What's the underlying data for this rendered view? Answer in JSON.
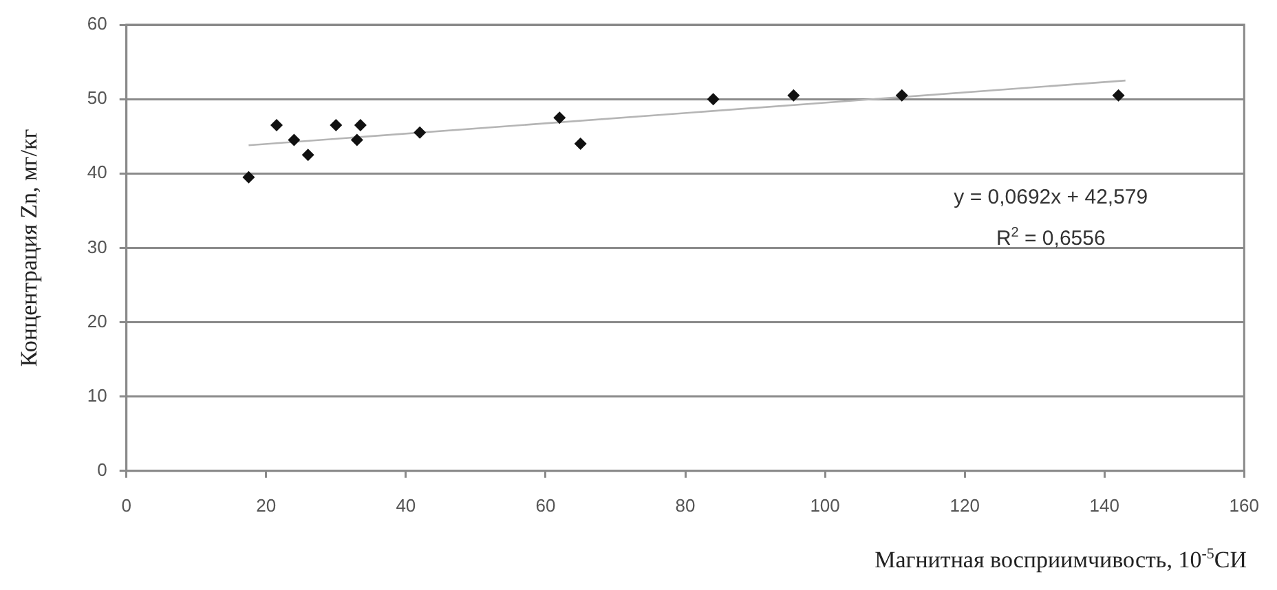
{
  "chart_data": {
    "type": "scatter",
    "xlabel": "Магнитная восприимчивость, 10$^{-5}$СИ",
    "ylabel": "Концентрация Zn, мг/кг",
    "xlim": [
      0,
      160
    ],
    "xticks": [
      0,
      20,
      40,
      60,
      80,
      100,
      120,
      140,
      160
    ],
    "ylim": [
      0,
      60
    ],
    "yticks": [
      0,
      10,
      20,
      30,
      40,
      50,
      60
    ],
    "grid": "y",
    "marker": "diamond",
    "series": [
      {
        "color": "#111111",
        "x": [
          17.5,
          21.5,
          24,
          26,
          30,
          33,
          33.5,
          42,
          62,
          65,
          84,
          95.5,
          111,
          142
        ],
        "values": [
          39.5,
          46.5,
          44.5,
          42.5,
          46.5,
          44.5,
          46.5,
          45.5,
          47.5,
          44,
          50,
          50.5,
          50.5,
          50.5
        ]
      },
      {
        "type": "line",
        "color": "#b5b5b5",
        "marker": "none",
        "x": [
          17.5,
          143
        ],
        "values": [
          43.8,
          52.5
        ]
      }
    ],
    "annotations": [
      "y = 0,0692x + 42,579",
      "R$^{2}$ = 0,6556"
    ]
  }
}
